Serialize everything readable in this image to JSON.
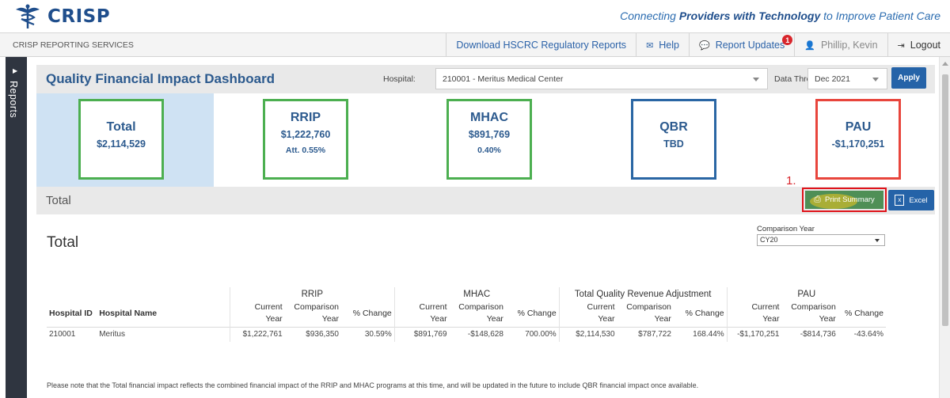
{
  "header": {
    "logo_text": "CRISP",
    "tagline_pre": "Connecting ",
    "tagline_bold": "Providers with Technology",
    "tagline_post": " to Improve Patient Care"
  },
  "subbar": {
    "title": "CRISP REPORTING SERVICES",
    "nav": {
      "download": "Download HSCRC Regulatory Reports",
      "help": "Help",
      "updates": "Report Updates",
      "updates_badge": "1",
      "user": "Phillip, Kevin",
      "logout": "Logout"
    }
  },
  "sidebar": {
    "label": "Reports"
  },
  "dashboard": {
    "title": "Quality Financial Impact Dashboard",
    "hospital_label": "Hospital:",
    "hospital_value": "210001 - Meritus Medical Center",
    "data_through_label": "Data Through:",
    "data_through_value": "Dec 2021",
    "apply_label": "Apply"
  },
  "cards": {
    "total": {
      "title": "Total",
      "value": "$2,114,529"
    },
    "rrip": {
      "title": "RRIP",
      "value": "$1,222,760",
      "sub": "Att. 0.55%"
    },
    "mhac": {
      "title": "MHAC",
      "value": "$891,769",
      "sub": "0.40%"
    },
    "qbr": {
      "title": "QBR",
      "value": "TBD"
    },
    "pau": {
      "title": "PAU",
      "value": "-$1,170,251"
    }
  },
  "section": {
    "bar_title": "Total",
    "step_label": "1.",
    "print_label": "Print Summary",
    "excel_label": "Excel",
    "title": "Total",
    "comparison_label": "Comparison Year",
    "comparison_value": "CY20"
  },
  "table": {
    "groups": [
      "RRIP",
      "MHAC",
      "Total Quality Revenue Adjustment",
      "PAU"
    ],
    "col_hospital_id": "Hospital ID",
    "col_hospital_name": "Hospital Name",
    "col_current": "Current",
    "col_year": "Year",
    "col_comparison": "Comparison",
    "col_pct": "% Change",
    "row": {
      "id": "210001",
      "name": "Meritus",
      "rrip_cur": "$1,222,761",
      "rrip_cmp": "$936,350",
      "rrip_pct": "30.59%",
      "mhac_cur": "$891,769",
      "mhac_cmp": "-$148,628",
      "mhac_pct": "700.00%",
      "tqra_cur": "$2,114,530",
      "tqra_cmp": "$787,722",
      "tqra_pct": "168.44%",
      "pau_cur": "-$1,170,251",
      "pau_cmp": "-$814,736",
      "pau_pct": "-43.64%"
    }
  },
  "note": "Please note that the Total financial impact reflects the combined financial impact of the RRIP and MHAC programs at this time, and will be updated in the future to include QBR financial impact once available."
}
